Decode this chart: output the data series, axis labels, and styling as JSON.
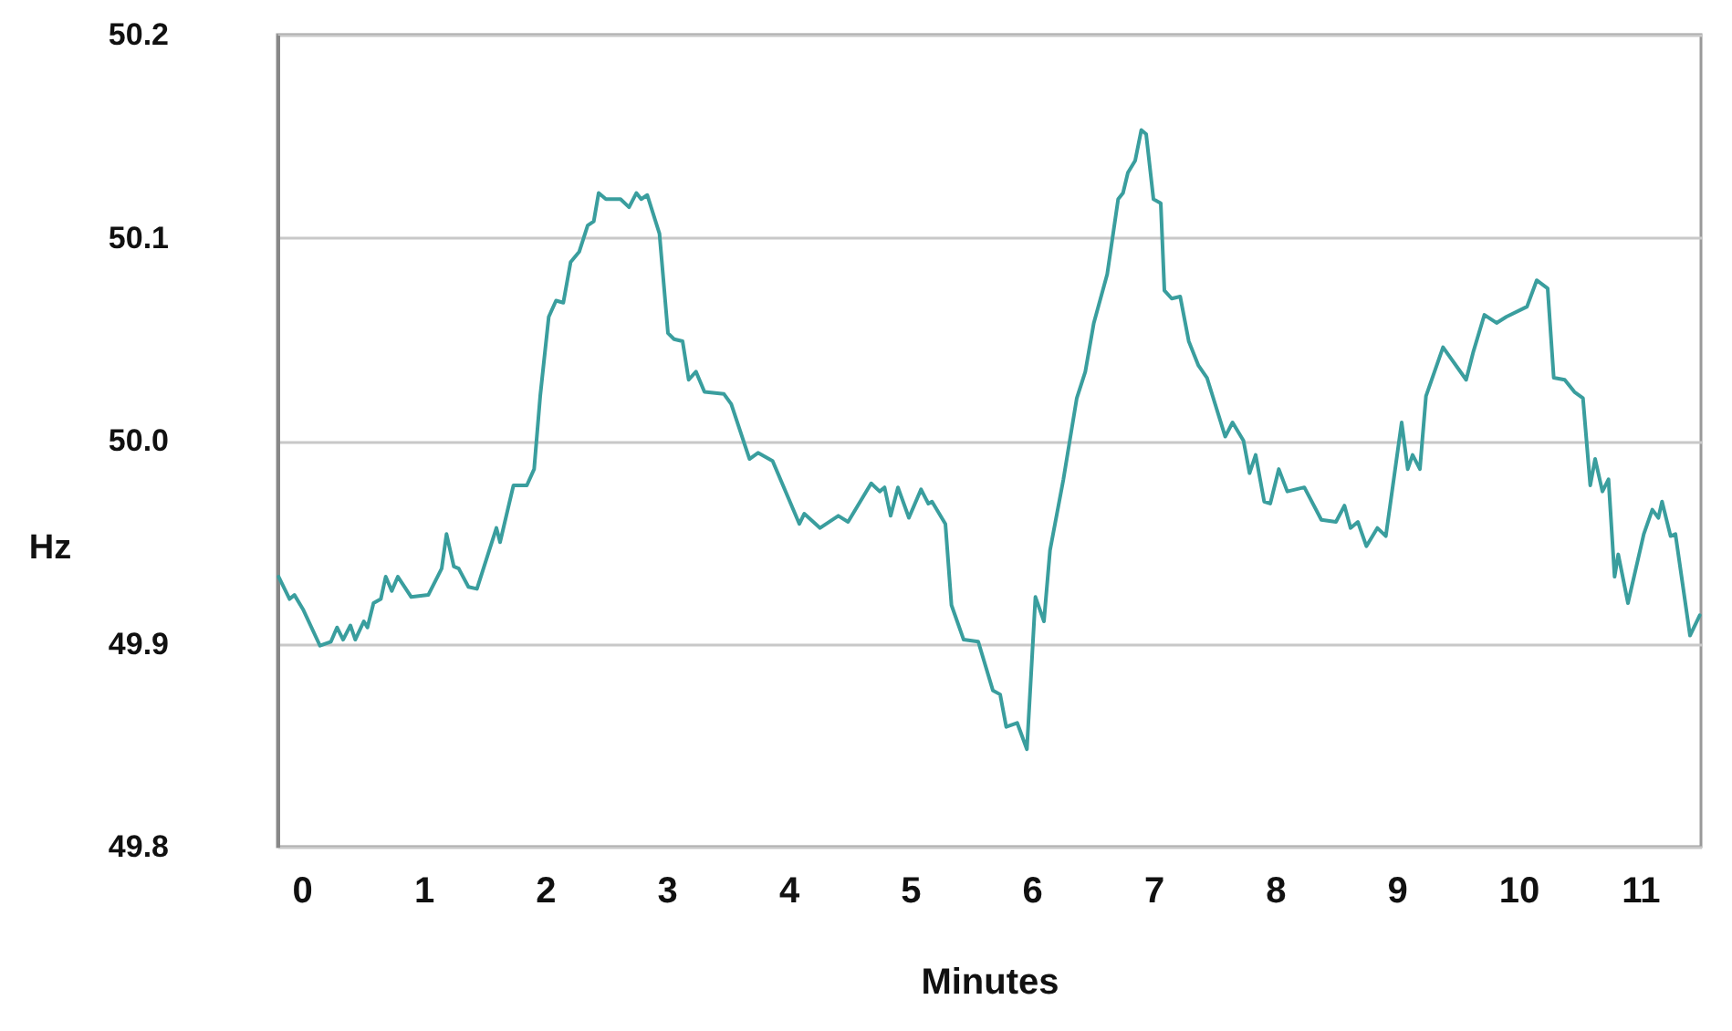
{
  "chart_data": {
    "type": "line",
    "xlabel": "Minutes",
    "ylabel": "Hz",
    "xlim": [
      -0.2,
      11.5
    ],
    "xticks": [
      0,
      1,
      2,
      3,
      4,
      5,
      6,
      7,
      8,
      9,
      10,
      11
    ],
    "ylim": [
      49.8,
      50.2
    ],
    "yticks": [
      49.8,
      49.9,
      {
        "value": 50.0,
        "label": "50.0"
      },
      50.1,
      50.2
    ],
    "grid": "y",
    "marker": "none",
    "line_style": "solid",
    "series": [
      {
        "color": "#3a9e9e",
        "x": [
          -0.19,
          -0.1,
          -0.06,
          0.01,
          0.15,
          0.24,
          0.29,
          0.34,
          0.4,
          0.44,
          0.51,
          0.54,
          0.59,
          0.65,
          0.69,
          0.74,
          0.79,
          0.9,
          1.04,
          1.15,
          1.19,
          1.25,
          1.29,
          1.37,
          1.44,
          1.6,
          1.63,
          1.74,
          1.85,
          1.91,
          1.96,
          2.03,
          2.09,
          2.15,
          2.21,
          2.28,
          2.35,
          2.4,
          2.44,
          2.5,
          2.62,
          2.69,
          2.75,
          2.79,
          2.84,
          2.94,
          3.01,
          3.06,
          3.13,
          3.18,
          3.24,
          3.31,
          3.47,
          3.53,
          3.68,
          3.75,
          3.87,
          4.09,
          4.13,
          4.26,
          4.41,
          4.49,
          4.68,
          4.75,
          4.79,
          4.84,
          4.9,
          4.99,
          5.09,
          5.15,
          5.18,
          5.29,
          5.34,
          5.44,
          5.56,
          5.68,
          5.74,
          5.79,
          5.88,
          5.96,
          6.03,
          6.1,
          6.15,
          6.26,
          6.37,
          6.44,
          6.51,
          6.62,
          6.71,
          6.75,
          6.79,
          6.85,
          6.9,
          6.94,
          7.0,
          7.06,
          7.09,
          7.15,
          7.22,
          7.29,
          7.37,
          7.44,
          7.59,
          7.65,
          7.74,
          7.79,
          7.84,
          7.91,
          7.96,
          8.03,
          8.1,
          8.24,
          8.38,
          8.5,
          8.57,
          8.62,
          8.68,
          8.75,
          8.84,
          8.91,
          9.04,
          9.09,
          9.13,
          9.19,
          9.24,
          9.38,
          9.57,
          9.63,
          9.72,
          9.82,
          9.9,
          10.07,
          10.15,
          10.24,
          10.29,
          10.38,
          10.46,
          10.53,
          10.59,
          10.63,
          10.69,
          10.74,
          10.79,
          10.82,
          10.9,
          11.03,
          11.1,
          11.15,
          11.18,
          11.25,
          11.29,
          11.41,
          11.49
        ],
        "values": [
          49.933,
          49.922,
          49.924,
          49.917,
          49.899,
          49.901,
          49.908,
          49.902,
          49.909,
          49.902,
          49.911,
          49.908,
          49.92,
          49.922,
          49.933,
          49.926,
          49.933,
          49.923,
          49.924,
          49.937,
          49.954,
          49.938,
          49.937,
          49.928,
          49.927,
          49.957,
          49.95,
          49.978,
          49.978,
          49.986,
          50.022,
          50.061,
          50.069,
          50.068,
          50.088,
          50.093,
          50.106,
          50.108,
          50.122,
          50.119,
          50.119,
          50.115,
          50.122,
          50.119,
          50.121,
          50.102,
          50.053,
          50.05,
          50.049,
          50.03,
          50.034,
          50.024,
          50.023,
          50.018,
          49.991,
          49.994,
          49.99,
          49.959,
          49.964,
          49.957,
          49.963,
          49.96,
          49.979,
          49.975,
          49.977,
          49.963,
          49.977,
          49.962,
          49.976,
          49.969,
          49.97,
          49.959,
          49.919,
          49.902,
          49.901,
          49.877,
          49.875,
          49.859,
          49.861,
          49.848,
          49.923,
          49.911,
          49.946,
          49.981,
          50.021,
          50.034,
          50.058,
          50.082,
          50.119,
          50.122,
          50.132,
          50.138,
          50.153,
          50.151,
          50.119,
          50.117,
          50.074,
          50.07,
          50.071,
          50.049,
          50.037,
          50.031,
          50.002,
          50.009,
          50.0,
          49.984,
          49.993,
          49.97,
          49.969,
          49.986,
          49.975,
          49.977,
          49.961,
          49.96,
          49.968,
          49.957,
          49.96,
          49.948,
          49.957,
          49.953,
          50.009,
          49.986,
          49.993,
          49.986,
          50.022,
          50.046,
          50.03,
          50.044,
          50.062,
          50.058,
          50.061,
          50.066,
          50.079,
          50.075,
          50.031,
          50.03,
          50.024,
          50.021,
          49.978,
          49.991,
          49.975,
          49.981,
          49.933,
          49.944,
          49.92,
          49.954,
          49.966,
          49.962,
          49.97,
          49.953,
          49.954,
          49.904,
          49.914
        ]
      }
    ]
  }
}
